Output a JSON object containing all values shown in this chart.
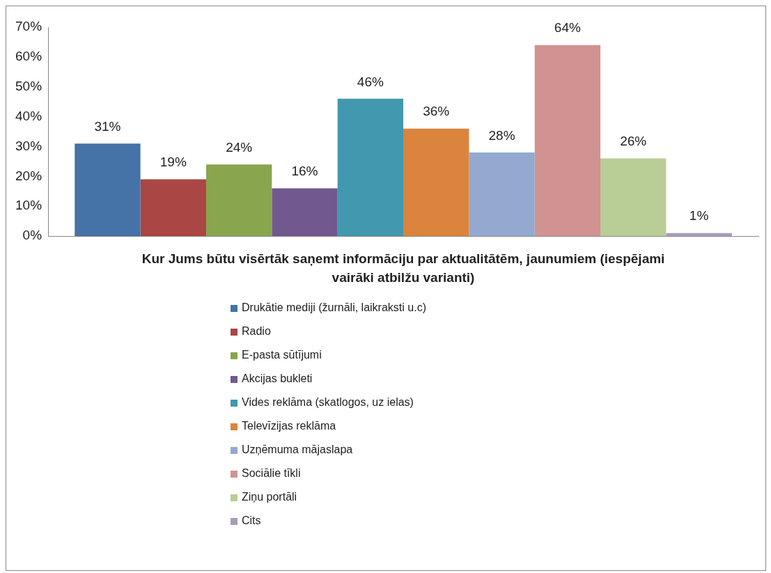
{
  "chart_data": {
    "type": "bar",
    "title": "Kur Jums būtu visērtāk saņemt informāciju par aktualitātēm, jaunumiem (iespējami vairāki atbilžu varianti)",
    "categories": [
      null
    ],
    "series": [
      {
        "name": "Drukātie mediji (žurnāli, laikraksti u.c)",
        "color": "#4572a7",
        "values": [
          31
        ],
        "value_labels": [
          "31%"
        ]
      },
      {
        "name": "Radio",
        "color": "#aa4643",
        "values": [
          19
        ],
        "value_labels": [
          "19%"
        ]
      },
      {
        "name": "E-pasta sūtījumi",
        "color": "#89a54e",
        "values": [
          24
        ],
        "value_labels": [
          "24%"
        ]
      },
      {
        "name": "Akcijas bukleti",
        "color": "#71588f",
        "values": [
          16
        ],
        "value_labels": [
          "16%"
        ]
      },
      {
        "name": "Vides reklāma (skatlogos, uz ielas)",
        "color": "#4198af",
        "values": [
          46
        ],
        "value_labels": [
          "46%"
        ]
      },
      {
        "name": "Televīzijas reklāma",
        "color": "#db843d",
        "values": [
          36
        ],
        "value_labels": [
          "36%"
        ]
      },
      {
        "name": "Uzņēmuma mājaslapa",
        "color": "#93a9cf",
        "values": [
          28
        ],
        "value_labels": [
          "28%"
        ]
      },
      {
        "name": "Sociālie tīkli",
        "color": "#d19392",
        "values": [
          64
        ],
        "value_labels": [
          "64%"
        ]
      },
      {
        "name": "Ziņu portāli",
        "color": "#b9cd96",
        "values": [
          26
        ],
        "value_labels": [
          "26%"
        ]
      },
      {
        "name": "Cits",
        "color": "#a99bbd",
        "values": [
          1
        ],
        "value_labels": [
          "1%"
        ]
      }
    ],
    "ylim": [
      0,
      70
    ],
    "yticks": [
      {
        "value": 0,
        "label": "0%"
      },
      {
        "value": 10,
        "label": "10%"
      },
      {
        "value": 20,
        "label": "20%"
      },
      {
        "value": 30,
        "label": "30%"
      },
      {
        "value": 40,
        "label": "40%"
      },
      {
        "value": 50,
        "label": "50%"
      },
      {
        "value": 60,
        "label": "60%"
      },
      {
        "value": 70,
        "label": "70%"
      }
    ],
    "grid": false,
    "legend": "bottom",
    "tick_labels": "y"
  }
}
